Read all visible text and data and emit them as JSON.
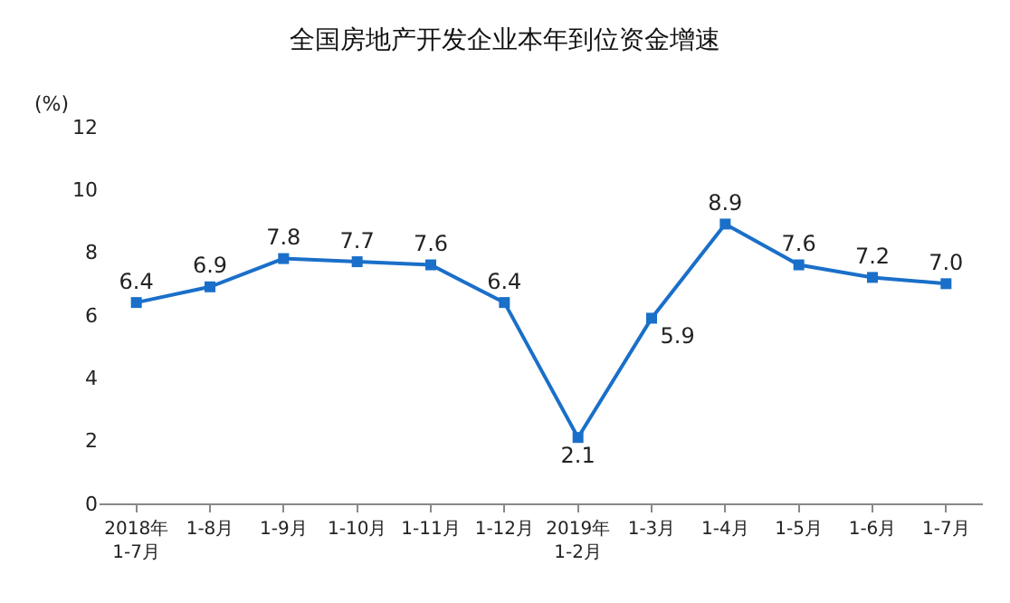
{
  "chart_data": {
    "type": "line",
    "title": "全国房地产开发企业本年到位资金增速",
    "ylabel": "(%)",
    "categories": [
      "2018年\n1-7月",
      "1-8月",
      "1-9月",
      "1-10月",
      "1-11月",
      "1-12月",
      "2019年\n1-2月",
      "1-3月",
      "1-4月",
      "1-5月",
      "1-6月",
      "1-7月"
    ],
    "series": [
      {
        "color": "#1a6fc9",
        "values": [
          6.4,
          6.9,
          7.8,
          7.7,
          7.6,
          6.4,
          2.1,
          5.9,
          8.9,
          7.6,
          7.2,
          7.0
        ],
        "value_labels": [
          "6.4",
          "6.9",
          "7.8",
          "7.7",
          "7.6",
          "6.4",
          "2.1",
          "5.9",
          "8.9",
          "7.6",
          "7.2",
          "7.0"
        ]
      }
    ],
    "ylim": [
      0,
      12
    ],
    "yticks": [
      0,
      2,
      4,
      6,
      8,
      10,
      12
    ],
    "grid": false,
    "legend": false,
    "marker": "square",
    "line_style": "solid"
  }
}
